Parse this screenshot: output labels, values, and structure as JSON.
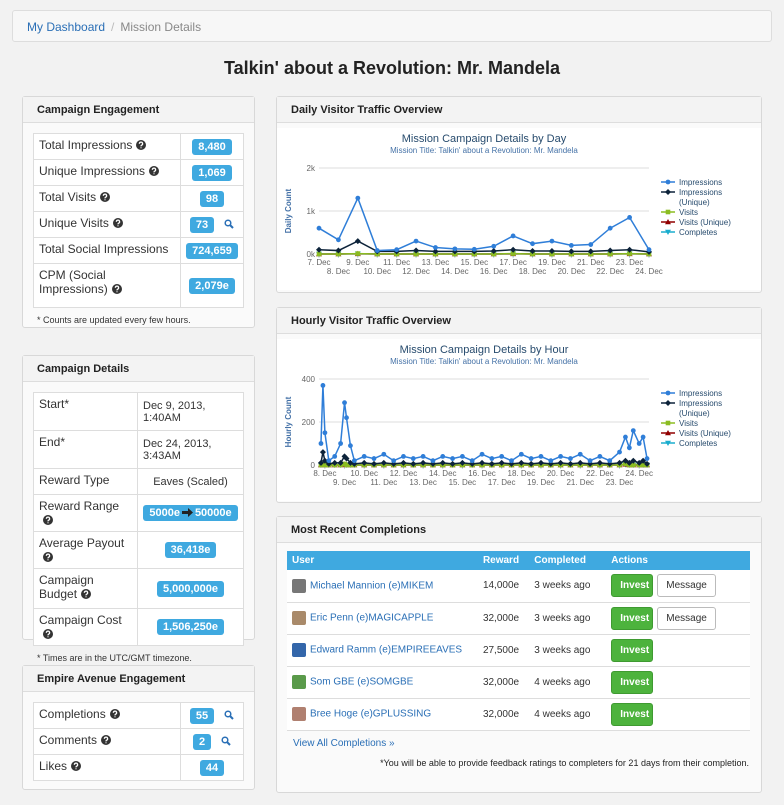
{
  "breadcrumb": [
    "My Dashboard",
    "Mission Details"
  ],
  "title": "Talkin' about a Revolution: Mr. Mandela",
  "engagement": {
    "title": "Campaign Engagement",
    "rows": [
      {
        "label": "Total Impressions",
        "value": "8,480"
      },
      {
        "label": "Unique Impressions",
        "value": "1,069"
      },
      {
        "label": "Total Visits",
        "value": "98"
      },
      {
        "label": "Unique Visits",
        "value": "73"
      },
      {
        "label": "Total Social Impressions",
        "value": "724,659"
      },
      {
        "label": "CPM (Social Impressions)",
        "value": "2,079e"
      }
    ],
    "note": "* Counts are updated every few hours."
  },
  "details": {
    "title": "Campaign Details",
    "rows": [
      {
        "label": "Start*",
        "value": "Dec 9, 2013, 1:40AM"
      },
      {
        "label": "End*",
        "value": "Dec 24, 2013, 3:43AM"
      },
      {
        "label": "Reward Type",
        "value": "Eaves (Scaled)"
      },
      {
        "label": "Reward Range",
        "value": [
          "5000e",
          "50000e"
        ]
      },
      {
        "label": "Average Payout",
        "value": "36,418e"
      },
      {
        "label": "Campaign Budget",
        "value": "5,000,000e"
      },
      {
        "label": "Campaign Cost",
        "value": "1,506,250e"
      }
    ],
    "note": "* Times are in the UTC/GMT timezone."
  },
  "empire": {
    "title": "Empire Avenue Engagement",
    "rows": [
      {
        "label": "Completions",
        "value": "55"
      },
      {
        "label": "Comments",
        "value": "2"
      },
      {
        "label": "Likes",
        "value": "44"
      }
    ]
  },
  "panels": {
    "daily": "Daily Visitor Traffic Overview",
    "hourly": "Hourly Visitor Traffic Overview",
    "completions": "Most Recent Completions"
  },
  "chart_data": [
    {
      "type": "line",
      "title": "Mission Campaign Details by Day",
      "subtitle": "Mission Title: Talkin' about a Revolution: Mr. Mandela",
      "y_label": "Daily Count",
      "x": [
        7,
        8,
        9,
        10,
        11,
        12,
        13,
        14,
        15,
        16,
        17,
        18,
        19,
        20,
        21,
        22,
        23,
        24
      ],
      "xlim": [
        7,
        24
      ],
      "xticks": [
        {
          "value": 7,
          "label": "7. Dec"
        },
        {
          "value": 8,
          "label": "8. Dec"
        },
        {
          "value": 9,
          "label": "9. Dec"
        },
        {
          "value": 10,
          "label": "10. Dec"
        },
        {
          "value": 11,
          "label": "11. Dec"
        },
        {
          "value": 12,
          "label": "12. Dec"
        },
        {
          "value": 13,
          "label": "13. Dec"
        },
        {
          "value": 14,
          "label": "14. Dec"
        },
        {
          "value": 15,
          "label": "15. Dec"
        },
        {
          "value": 16,
          "label": "16. Dec"
        },
        {
          "value": 17,
          "label": "17. Dec"
        },
        {
          "value": 18,
          "label": "18. Dec"
        },
        {
          "value": 19,
          "label": "19. Dec"
        },
        {
          "value": 20,
          "label": "20. Dec"
        },
        {
          "value": 21,
          "label": "21. Dec"
        },
        {
          "value": 22,
          "label": "22. Dec"
        },
        {
          "value": 23,
          "label": "23. Dec"
        },
        {
          "value": 24,
          "label": "24. Dec"
        }
      ],
      "ylim": [
        0,
        2000
      ],
      "yticks": [
        {
          "value": 0,
          "label": "0k"
        },
        {
          "value": 1000,
          "label": "1k"
        },
        {
          "value": 2000,
          "label": "2k"
        }
      ],
      "grid": true,
      "series": [
        {
          "name": "Impressions",
          "color": "#2f7ed8",
          "values": [
            600,
            330,
            1300,
            80,
            100,
            300,
            150,
            120,
            110,
            180,
            420,
            240,
            300,
            200,
            220,
            600,
            850,
            100
          ]
        },
        {
          "name": "Impressions (Unique)",
          "color": "#0d233a",
          "values": [
            100,
            80,
            300,
            60,
            60,
            80,
            60,
            60,
            60,
            70,
            100,
            70,
            70,
            60,
            60,
            80,
            100,
            50
          ]
        },
        {
          "name": "Visits",
          "color": "#8bbc21",
          "values": [
            0,
            0,
            10,
            0,
            0,
            0,
            0,
            0,
            0,
            0,
            10,
            0,
            0,
            0,
            0,
            0,
            10,
            0
          ]
        },
        {
          "name": "Visits (Unique)",
          "color": "#910000",
          "values": [
            0,
            0,
            5,
            0,
            0,
            0,
            0,
            0,
            0,
            0,
            5,
            0,
            0,
            0,
            0,
            0,
            5,
            0
          ]
        },
        {
          "name": "Completes",
          "color": "#1aadce",
          "values": [
            0,
            0,
            5,
            0,
            0,
            0,
            0,
            0,
            0,
            0,
            5,
            0,
            0,
            0,
            0,
            0,
            5,
            0
          ]
        }
      ]
    },
    {
      "type": "line",
      "title": "Mission Campaign Details by Hour",
      "subtitle": "Mission Title: Talkin' about a Revolution: Mr. Mandela",
      "y_label": "Hourly Count",
      "x": [
        7.8,
        7.9,
        8.0,
        8.2,
        8.5,
        8.8,
        9.0,
        9.1,
        9.3,
        9.5,
        10.0,
        10.5,
        11.0,
        11.5,
        12.0,
        12.5,
        13.0,
        13.5,
        14.0,
        14.5,
        15.0,
        15.5,
        16.0,
        16.5,
        17.0,
        17.5,
        18.0,
        18.5,
        19.0,
        19.5,
        20.0,
        20.5,
        21.0,
        21.5,
        22.0,
        22.5,
        23.0,
        23.3,
        23.5,
        23.7,
        24.0,
        24.2,
        24.4
      ],
      "xlim": [
        7.7,
        24.5
      ],
      "xticks": [
        {
          "value": 8,
          "label": "8. Dec"
        },
        {
          "value": 9,
          "label": "9. Dec"
        },
        {
          "value": 10,
          "label": "10. Dec"
        },
        {
          "value": 11,
          "label": "11. Dec"
        },
        {
          "value": 12,
          "label": "12. Dec"
        },
        {
          "value": 13,
          "label": "13. Dec"
        },
        {
          "value": 14,
          "label": "14. Dec"
        },
        {
          "value": 15,
          "label": "15. Dec"
        },
        {
          "value": 16,
          "label": "16. Dec"
        },
        {
          "value": 17,
          "label": "17. Dec"
        },
        {
          "value": 18,
          "label": "18. Dec"
        },
        {
          "value": 19,
          "label": "19. Dec"
        },
        {
          "value": 20,
          "label": "20. Dec"
        },
        {
          "value": 21,
          "label": "21. Dec"
        },
        {
          "value": 22,
          "label": "22. Dec"
        },
        {
          "value": 23,
          "label": "23. Dec"
        },
        {
          "value": 24,
          "label": "24. Dec"
        }
      ],
      "ylim": [
        0,
        400
      ],
      "yticks": [
        0,
        200,
        400
      ],
      "grid": true,
      "series": [
        {
          "name": "Impressions",
          "color": "#2f7ed8",
          "values": [
            100,
            370,
            150,
            20,
            40,
            100,
            290,
            220,
            90,
            20,
            40,
            30,
            50,
            20,
            40,
            30,
            40,
            20,
            40,
            30,
            40,
            20,
            50,
            30,
            40,
            20,
            50,
            30,
            40,
            20,
            40,
            30,
            50,
            20,
            40,
            20,
            60,
            130,
            80,
            160,
            100,
            130,
            30
          ]
        },
        {
          "name": "Impressions (Unique)",
          "color": "#0d233a",
          "values": [
            10,
            60,
            20,
            5,
            10,
            10,
            40,
            30,
            10,
            5,
            10,
            5,
            10,
            5,
            10,
            5,
            10,
            5,
            10,
            5,
            10,
            5,
            10,
            5,
            10,
            5,
            10,
            5,
            10,
            5,
            10,
            5,
            10,
            5,
            10,
            5,
            10,
            20,
            10,
            20,
            10,
            20,
            5
          ]
        },
        {
          "name": "Visits",
          "color": "#8bbc21",
          "values": [
            0,
            5,
            0,
            0,
            0,
            0,
            5,
            0,
            0,
            0,
            0,
            0,
            0,
            0,
            0,
            0,
            0,
            0,
            0,
            0,
            0,
            0,
            0,
            0,
            0,
            0,
            0,
            0,
            0,
            0,
            0,
            0,
            0,
            0,
            0,
            0,
            0,
            5,
            0,
            0,
            0,
            0,
            0
          ]
        },
        {
          "name": "Visits (Unique)",
          "color": "#910000",
          "values": [
            0,
            3,
            0,
            0,
            0,
            0,
            3,
            0,
            0,
            0,
            0,
            0,
            0,
            0,
            0,
            0,
            0,
            0,
            0,
            0,
            0,
            0,
            0,
            0,
            0,
            0,
            0,
            0,
            0,
            0,
            0,
            0,
            0,
            0,
            0,
            0,
            0,
            3,
            0,
            0,
            0,
            0,
            0
          ]
        },
        {
          "name": "Completes",
          "color": "#1aadce",
          "values": [
            0,
            2,
            0,
            0,
            0,
            0,
            2,
            0,
            0,
            0,
            0,
            0,
            0,
            0,
            0,
            0,
            0,
            0,
            0,
            0,
            0,
            0,
            0,
            0,
            0,
            0,
            0,
            0,
            0,
            0,
            0,
            0,
            0,
            0,
            0,
            0,
            0,
            2,
            0,
            0,
            0,
            0,
            0
          ]
        }
      ]
    }
  ],
  "completions": {
    "columns": [
      "User",
      "Reward",
      "Completed",
      "Actions"
    ],
    "rows": [
      {
        "user": "Michael Mannion (e)MIKEM",
        "reward": "14,000e",
        "completed": "3 weeks ago",
        "actions": [
          "Invest",
          "Message"
        ]
      },
      {
        "user": "Eric Penn (e)MAGICAPPLE",
        "reward": "32,000e",
        "completed": "3 weeks ago",
        "actions": [
          "Invest",
          "Message"
        ]
      },
      {
        "user": "Edward Ramm (e)EMPIREEAVES",
        "reward": "27,500e",
        "completed": "3 weeks ago",
        "actions": [
          "Invest"
        ]
      },
      {
        "user": "Som GBE (e)SOMGBE",
        "reward": "32,000e",
        "completed": "4 weeks ago",
        "actions": [
          "Invest"
        ]
      },
      {
        "user": "Bree Hoge (e)GPLUSSING",
        "reward": "32,000e",
        "completed": "4 weeks ago",
        "actions": [
          "Invest"
        ]
      }
    ],
    "view_all": "View All Completions »",
    "note": "*You will be able to provide feedback ratings to completers for 21 days from their completion."
  }
}
